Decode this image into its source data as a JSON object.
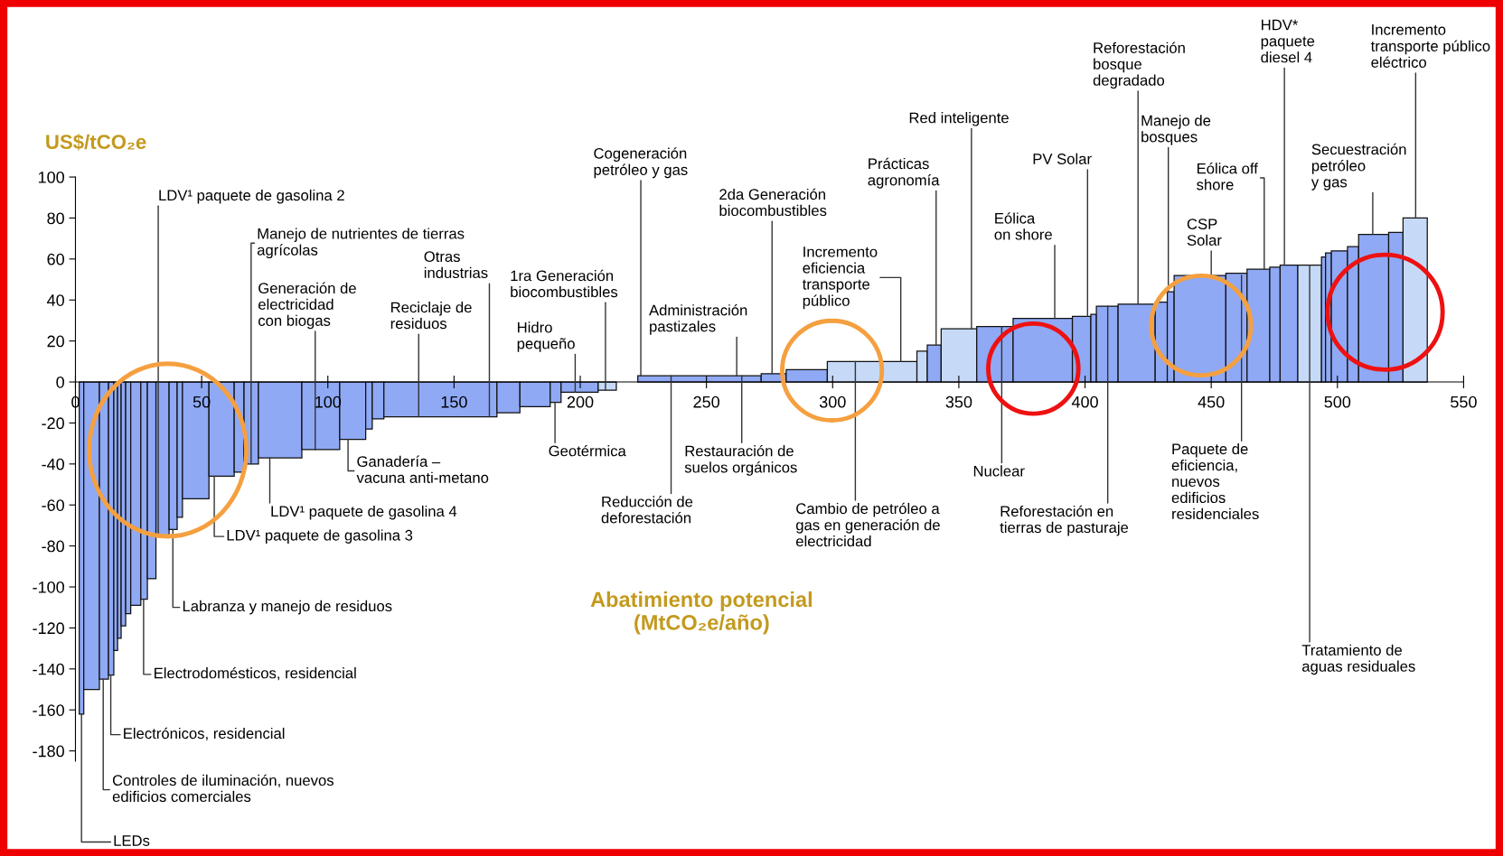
{
  "chart_data": {
    "type": "histogram",
    "ylabel": "US$/tCO₂e",
    "xlabel": "Abatimiento potencial\n(MtCO₂e/año)",
    "bins": [
      1.5,
      3.3,
      9.5,
      13.1,
      15.2,
      16.7,
      18.1,
      19.9,
      21.9,
      25.9,
      28.5,
      31.9,
      37.1,
      40.3,
      42.4,
      52.9,
      62.9,
      66.8,
      72.5,
      89.7,
      104.7,
      115,
      117.6,
      122.2,
      167,
      176.1,
      188.1,
      192.4,
      207.1,
      214.3,
      222.8,
      271.7,
      281.6,
      297.9,
      333.4,
      337.5,
      343,
      357.1,
      371.5,
      395,
      402.3,
      404.5,
      413.1,
      427.8,
      432.6,
      435.3,
      455.8,
      464.2,
      473.2,
      477.3,
      484.3,
      493.7,
      495.3,
      497.6,
      504,
      508.4,
      520.3,
      526,
      535.6
    ],
    "values": [
      -162,
      -150,
      -145,
      -143,
      -131,
      -125,
      -119,
      -113,
      -109,
      -106,
      -96,
      -75,
      -72,
      -66,
      -57,
      -46,
      -44,
      -40,
      -37,
      -33,
      -28,
      -23,
      -18,
      -17,
      -15,
      -12,
      -10,
      -5,
      -4,
      null,
      3,
      4,
      6,
      10,
      15,
      18,
      26,
      27,
      31,
      32,
      33,
      37,
      38,
      39,
      44,
      52,
      53,
      55,
      56,
      57,
      57,
      61,
      63,
      64,
      66,
      72,
      73,
      80
    ],
    "colors": [
      "#8fa9f5",
      "#8fa9f5",
      "#8fa9f5",
      "#8fa9f5",
      "#8fa9f5",
      "#8fa9f5",
      "#8fa9f5",
      "#8fa9f5",
      "#8fa9f5",
      "#8fa9f5",
      "#8fa9f5",
      "#8fa9f5",
      "#8fa9f5",
      "#8fa9f5",
      "#8fa9f5",
      "#8fa9f5",
      "#8fa9f5",
      "#8fa9f5",
      "#8fa9f5",
      "#8fa9f5",
      "#8fa9f5",
      "#8fa9f5",
      "#8fa9f5",
      "#8fa9f5",
      "#8fa9f5",
      "#8fa9f5",
      "#8fa9f5",
      "#8fa9f5",
      "#c6daf7",
      "#8fa9f5",
      "#8fa9f5",
      "#8fa9f5",
      "#8fa9f5",
      "#c6daf7",
      "#c6daf7",
      "#8fa9f5",
      "#c6daf7",
      "#8fa9f5",
      "#8fa9f5",
      "#8fa9f5",
      "#8fa9f5",
      "#8fa9f5",
      "#8fa9f5",
      "#8fa9f5",
      "#8fa9f5",
      "#8fa9f5",
      "#8fa9f5",
      "#8fa9f5",
      "#8fa9f5",
      "#8fa9f5",
      "#c6daf7",
      "#8fa9f5",
      "#8fa9f5",
      "#8fa9f5",
      "#8fa9f5",
      "#8fa9f5",
      "#8fa9f5",
      "#c6daf7"
    ],
    "xlim": [
      0,
      550
    ],
    "ylim": [
      -185,
      100
    ],
    "xticks": [
      0,
      50,
      100,
      150,
      200,
      250,
      300,
      350,
      400,
      450,
      500,
      550
    ],
    "yticks": [
      100,
      80,
      60,
      40,
      20,
      0,
      -20,
      -40,
      -60,
      -80,
      -100,
      -120,
      -140,
      -160,
      -180
    ],
    "annotations": [
      {
        "text": "LEDs",
        "x": 2.4,
        "y": -162
      },
      {
        "text": "Controles de iluminación, nuevos\nedificios comerciales",
        "x": 11,
        "y": -145
      },
      {
        "text": "Electrónicos, residencial",
        "x": 14,
        "y": -143
      },
      {
        "text": "Electrodomésticos, residencial",
        "x": 27,
        "y": -106
      },
      {
        "text": "Labranza y manejo de residuos",
        "x": 38.6,
        "y": -72
      },
      {
        "text": "LDV¹ paquete de gasolina 3",
        "x": 55,
        "y": -46
      },
      {
        "text": "LDV¹ paquete de gasolina 4",
        "x": 77,
        "y": -37
      },
      {
        "text": "Ganadería –\nvacuna anti-metano",
        "x": 108,
        "y": -28
      },
      {
        "text": "Geotérmica",
        "x": 190,
        "y": -10
      },
      {
        "text": "Reducción de\ndeforestación",
        "x": 236,
        "y": 3
      },
      {
        "text": "Restauración de\nsuelos orgánicos",
        "x": 264,
        "y": 3
      },
      {
        "text": "Cambio de petróleo a\ngas en generación de\nelectricidad",
        "x": 309,
        "y": 10
      },
      {
        "text": "Nuclear",
        "x": 367,
        "y": 27
      },
      {
        "text": "Reforestación en\ntierras de pasturaje",
        "x": 409,
        "y": 37
      },
      {
        "text": "Paquete de\neficiencia,\nnuevos\nedificios\nresidenciales",
        "x": 462,
        "y": 52
      },
      {
        "text": "Tratamiento de\naguas residuales",
        "x": 489,
        "y": 57
      },
      {
        "text": "Incremento\ntransporte público\neléctrico",
        "x": 531,
        "y": 80
      },
      {
        "text": "Secuestración\npetróleo\ny gas",
        "x": 514,
        "y": 72
      },
      {
        "text": "HDV*\npaquete\ndiesel 4",
        "x": 479,
        "y": 57
      },
      {
        "text": "Eólica off\nshore",
        "x": 471,
        "y": 55
      },
      {
        "text": "CSP\nSolar",
        "x": 450,
        "y": 52
      },
      {
        "text": "Manejo de\nbosques",
        "x": 433,
        "y": 44
      },
      {
        "text": "Reforestación\nbosque\ndegradado",
        "x": 421,
        "y": 38
      },
      {
        "text": "PV Solar",
        "x": 401,
        "y": 32
      },
      {
        "text": "Eólica\non shore",
        "x": 388,
        "y": 31
      },
      {
        "text": "Red inteligente",
        "x": 355,
        "y": 26
      },
      {
        "text": "Prácticas\nagronomía",
        "x": 341,
        "y": 18
      },
      {
        "text": "Incremento\neficiencia\ntransporte\npúblico",
        "x": 327,
        "y": 10
      },
      {
        "text": "2da Generación\nbiocombustibles",
        "x": 276,
        "y": 4
      },
      {
        "text": "Administración\npastizales",
        "x": 262,
        "y": 3
      },
      {
        "text": "Cogeneración\npetróleo y gas",
        "x": 224,
        "y": 3
      },
      {
        "text": "Hidro\npequeño",
        "x": 198,
        "y": -5
      },
      {
        "text": "1ra Generación\nbiocombustibles",
        "x": 210,
        "y": -4
      },
      {
        "text": "Reciclaje de\nresiduos",
        "x": 136,
        "y": -17
      },
      {
        "text": "Otras\nindustrias",
        "x": 164,
        "y": -17
      },
      {
        "text": "Generación de\nelectricidad\ncon biogas",
        "x": 95,
        "y": -33
      },
      {
        "text": "Manejo de nutrientes de tierras\nagrícolas",
        "x": 69.6,
        "y": -40
      },
      {
        "text": "LDV¹ paquete de gasolina 2",
        "x": 32.8,
        "y": -75
      }
    ]
  }
}
